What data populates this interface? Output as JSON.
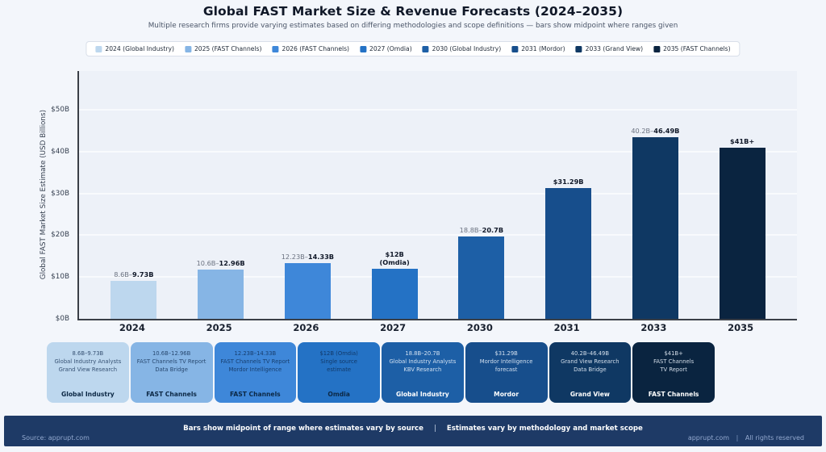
{
  "header": {
    "title": "Global FAST Market Size & Revenue Forecasts (2024–2035)",
    "subtitle": "Multiple research firms provide varying estimates based on differing methodologies and scope definitions — bars show midpoint where ranges given"
  },
  "legend": {
    "items": [
      {
        "label": "2024 (Global Industry)",
        "color": "#bdd7ee"
      },
      {
        "label": "2025 (FAST Channels)",
        "color": "#86b5e5"
      },
      {
        "label": "2026 (FAST Channels)",
        "color": "#3e87d9"
      },
      {
        "label": "2027 (Omdia)",
        "color": "#2472c5"
      },
      {
        "label": "2030 (Global Industry)",
        "color": "#1d5fa6"
      },
      {
        "label": "2031 (Mordor)",
        "color": "#174e8c"
      },
      {
        "label": "2033 (Grand View)",
        "color": "#0f3863"
      },
      {
        "label": "2035 (FAST Channels)",
        "color": "#0a2440"
      }
    ]
  },
  "chart_data": {
    "type": "bar",
    "title": "Global FAST Market Size & Revenue Forecasts (2024–2035)",
    "ylabel": "Global FAST Market Size Estimate (USD Billions)",
    "ylim": [
      0,
      59
    ],
    "grid": "horizontal",
    "yticks": [
      {
        "label": "$0B",
        "value": 0
      },
      {
        "label": "$10B",
        "value": 10
      },
      {
        "label": "$20B",
        "value": 20
      },
      {
        "label": "$30B",
        "value": 30
      },
      {
        "label": "$40B",
        "value": 40
      },
      {
        "label": "$50B",
        "value": 50
      }
    ],
    "categories": [
      "2024",
      "2025",
      "2026",
      "2027",
      "2030",
      "2031",
      "2033",
      "2035"
    ],
    "bars": [
      {
        "year": "2024",
        "color": "#bdd7ee",
        "midpoint": 9.17,
        "range_low": "8.6B",
        "range_high": "9.73B",
        "label_light": "8.6B–",
        "label_bold": "9.73B",
        "label_line2": ""
      },
      {
        "year": "2025",
        "color": "#86b5e5",
        "midpoint": 11.78,
        "range_low": "10.6B",
        "range_high": "12.96B",
        "label_light": "10.6B–",
        "label_bold": "12.96B",
        "label_line2": ""
      },
      {
        "year": "2026",
        "color": "#3e87d9",
        "midpoint": 13.28,
        "range_low": "12.23B",
        "range_high": "14.33B",
        "label_light": "12.23B–",
        "label_bold": "14.33B",
        "label_line2": ""
      },
      {
        "year": "2027",
        "color": "#2472c5",
        "midpoint": 12.0,
        "range_low": "12B",
        "range_high": "12B",
        "label_light": "",
        "label_bold": "$12B",
        "label_line2": "(Omdia)"
      },
      {
        "year": "2030",
        "color": "#1d5fa6",
        "midpoint": 19.75,
        "range_low": "18.8B",
        "range_high": "20.7B",
        "label_light": "18.8B–",
        "label_bold": "20.7B",
        "label_line2": ""
      },
      {
        "year": "2031",
        "color": "#174e8c",
        "midpoint": 31.29,
        "range_low": "31.29B",
        "range_high": "31.29B",
        "label_light": "",
        "label_bold": "$31.29B",
        "label_line2": ""
      },
      {
        "year": "2033",
        "color": "#0f3863",
        "midpoint": 43.35,
        "range_low": "40.2B",
        "range_high": "46.49B",
        "label_light": "40.2B–",
        "label_bold": "46.49B",
        "label_line2": ""
      },
      {
        "year": "2035",
        "color": "#0a2440",
        "midpoint": 41.0,
        "range_low": "41B",
        "range_high": "41B",
        "label_light": "",
        "label_bold": "$41B+",
        "label_line2": ""
      }
    ]
  },
  "cards": [
    {
      "lines": [
        "8.6B–9.73B",
        "Global Industry Analysts",
        "Grand View Research"
      ],
      "source_label": "Global Industry",
      "bg": "#bdd7ee",
      "theme": "dark"
    },
    {
      "lines": [
        "10.6B–12.96B",
        "FAST Channels TV Report",
        "Data Bridge"
      ],
      "source_label": "FAST Channels",
      "bg": "#86b5e5",
      "theme": "dark"
    },
    {
      "lines": [
        "12.23B–14.33B",
        "FAST Channels TV Report",
        "Mordor Intelligence"
      ],
      "source_label": "FAST Channels",
      "bg": "#3e87d9",
      "theme": "dark"
    },
    {
      "lines": [
        "$12B (Omdia)",
        "Single source",
        "estimate"
      ],
      "source_label": "Omdia",
      "bg": "#2472c5",
      "theme": "dark"
    },
    {
      "lines": [
        "18.8B–20.7B",
        "Global Industry Analysts",
        "KBV Research"
      ],
      "source_label": "Global Industry",
      "bg": "#1d5fa6",
      "theme": "light"
    },
    {
      "lines": [
        "$31.29B",
        "Mordor Intelligence",
        "forecast"
      ],
      "source_label": "Mordor",
      "bg": "#174e8c",
      "theme": "light"
    },
    {
      "lines": [
        "40.2B–46.49B",
        "Grand View Research",
        "Data Bridge"
      ],
      "source_label": "Grand View",
      "bg": "#0f3863",
      "theme": "light"
    },
    {
      "lines": [
        "$41B+",
        "FAST Channels",
        "TV Report"
      ],
      "source_label": "FAST Channels",
      "bg": "#0a2440",
      "theme": "light"
    }
  ],
  "footer": {
    "note_a": "Bars show midpoint of range where estimates vary by source",
    "note_sep": "|",
    "note_b": "Estimates vary by methodology and market scope",
    "source": "Source: apprupt.com",
    "rights_a": "apprupt.com",
    "rights_sep": "|",
    "rights_b": "All rights reserved"
  },
  "colors": {
    "page_bg": "#f3f6fb",
    "plot_bg": "#edf1f8",
    "gridline": "#f8fafd",
    "axis": "#3a3f47",
    "footer_bg": "#1e3a66"
  }
}
